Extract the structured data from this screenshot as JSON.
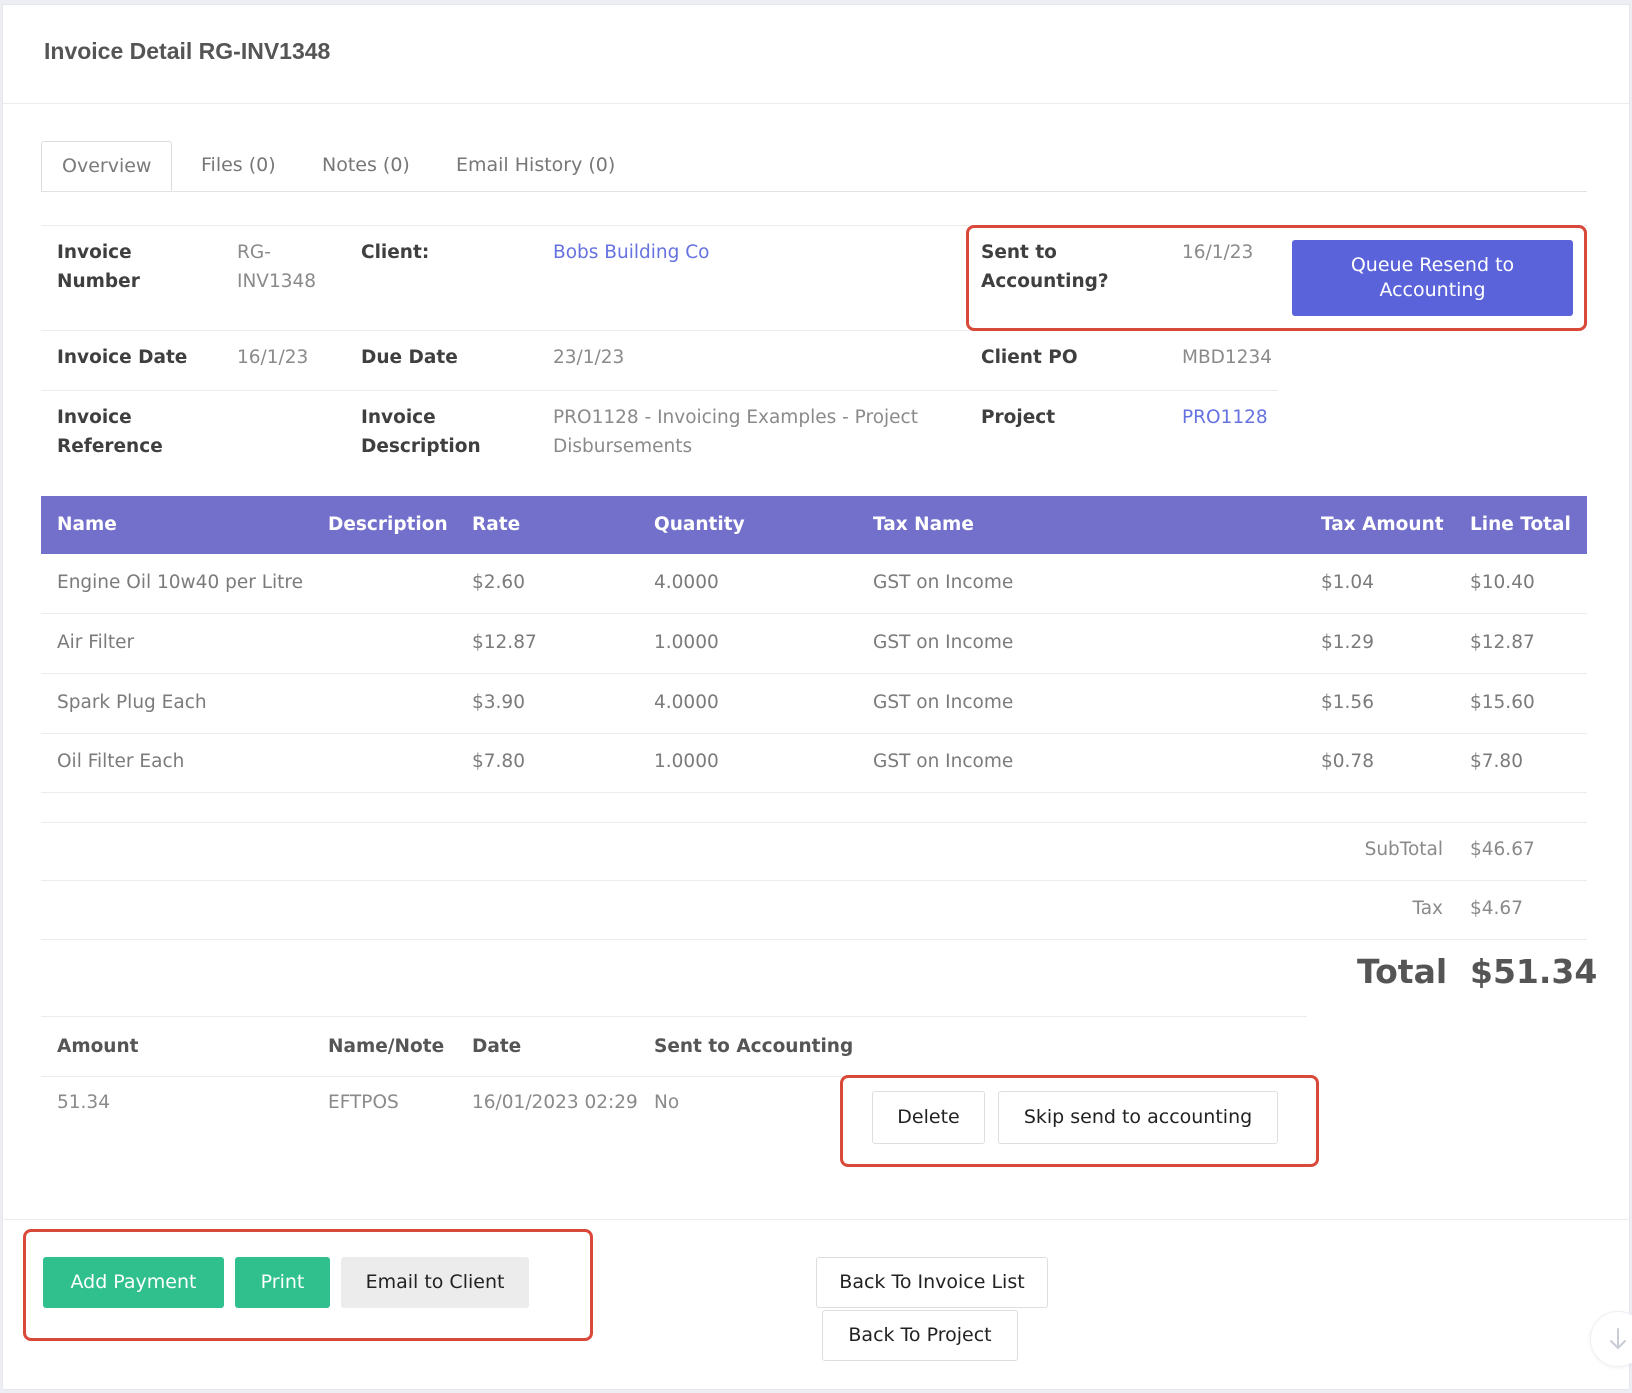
{
  "header": {
    "title": "Invoice Detail RG-INV1348"
  },
  "tabs": [
    {
      "label": "Overview"
    },
    {
      "label": "Files (0)"
    },
    {
      "label": "Notes (0)"
    },
    {
      "label": "Email History (0)"
    }
  ],
  "info": {
    "invoice_number_label_1": "Invoice",
    "invoice_number_label_2": "Number",
    "invoice_number_1": "RG-",
    "invoice_number_2": "INV1348",
    "client_label": "Client:",
    "client": "Bobs Building Co",
    "sent_label_1": "Sent to",
    "sent_label_2": "Accounting?",
    "sent_date": "16/1/23",
    "queue_button_1": "Queue Resend to",
    "queue_button_2": "Accounting",
    "invoice_date_label": "Invoice Date",
    "invoice_date": "16/1/23",
    "due_date_label": "Due Date",
    "due_date": "23/1/23",
    "client_po_label": "Client PO",
    "client_po": "MBD1234",
    "reference_label_1": "Invoice",
    "reference_label_2": "Reference",
    "description_label_1": "Invoice",
    "description_label_2": "Description",
    "description_1": "PRO1128 - Invoicing Examples - Project",
    "description_2": "Disbursements",
    "project_label": "Project",
    "project": "PRO1128"
  },
  "line_items": {
    "headers": [
      "Name",
      "Description",
      "Rate",
      "Quantity",
      "Tax Name",
      "Tax Amount",
      "Line Total"
    ],
    "rows": [
      {
        "name": "Engine Oil 10w40 per Litre",
        "description": "",
        "rate": "$2.60",
        "quantity": "4.0000",
        "tax_name": "GST on Income",
        "tax_amount": "$1.04",
        "line_total": "$10.40"
      },
      {
        "name": "Air Filter",
        "description": "",
        "rate": "$12.87",
        "quantity": "1.0000",
        "tax_name": "GST on Income",
        "tax_amount": "$1.29",
        "line_total": "$12.87"
      },
      {
        "name": "Spark Plug Each",
        "description": "",
        "rate": "$3.90",
        "quantity": "4.0000",
        "tax_name": "GST on Income",
        "tax_amount": "$1.56",
        "line_total": "$15.60"
      },
      {
        "name": "Oil Filter Each",
        "description": "",
        "rate": "$7.80",
        "quantity": "1.0000",
        "tax_name": "GST on Income",
        "tax_amount": "$0.78",
        "line_total": "$7.80"
      }
    ]
  },
  "totals": {
    "subtotal_label": "SubTotal",
    "subtotal": "$46.67",
    "tax_label": "Tax",
    "tax": "$4.67",
    "total_label": "Total",
    "total": "$51.34"
  },
  "payments": {
    "headers": [
      "Amount",
      "Name/Note",
      "Date",
      "Sent to Accounting"
    ],
    "rows": [
      {
        "amount": "51.34",
        "note": "EFTPOS",
        "date": "16/01/2023 02:29",
        "sent": "No"
      }
    ],
    "delete_label": "Delete",
    "skip_label": "Skip send to accounting"
  },
  "footer": {
    "add_payment": "Add Payment",
    "print": "Print",
    "email_client": "Email to Client",
    "back_invoice_list": "Back To Invoice List",
    "back_project": "Back To Project"
  },
  "colors": {
    "accent_purple": "#7370cc",
    "button_blue": "#5b63db",
    "link_blue": "#6672e0",
    "green": "#2fc08e",
    "highlight_red": "#d9493a"
  },
  "icons": {
    "scroll": "arrow-down-icon"
  }
}
